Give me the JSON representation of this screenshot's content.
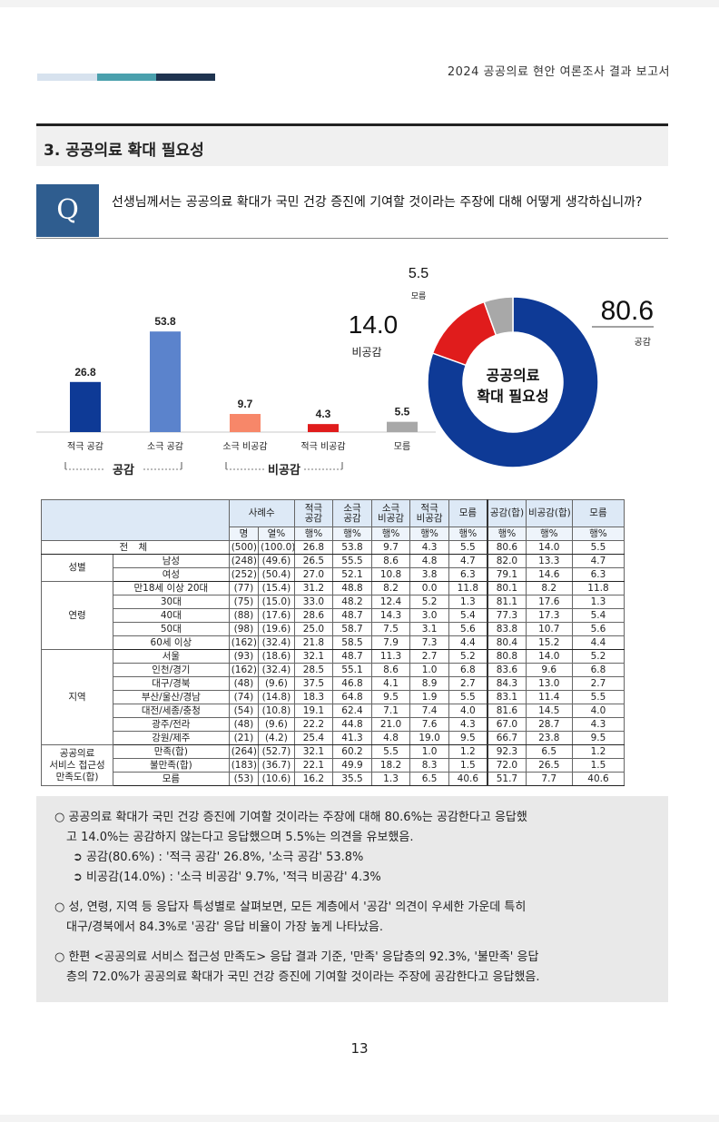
{
  "header": {
    "report_title": "2024 공공의료 현안 여론조사 결과 보고서",
    "bar_colors": [
      "#d7e2ee",
      "#4aa0ad",
      "#1f3450"
    ]
  },
  "section": {
    "title": "3. 공공의료 확대 필요성"
  },
  "question": {
    "badge": "Q",
    "text": "선생님께서는 공공의료 확대가 국민 건강 증진에 기여할 것이라는 주장에 대해 어떻게 생각하십니까?"
  },
  "chart_data": [
    {
      "type": "bar",
      "categories": [
        "적극 공감",
        "소극 공감",
        "소극 비공감",
        "적극 비공감",
        "모름"
      ],
      "values": [
        26.8,
        53.8,
        9.7,
        4.3,
        5.5
      ],
      "colors": [
        "#0e3a96",
        "#5b83cc",
        "#f78769",
        "#e01c1c",
        "#a8a8a8"
      ],
      "groups": [
        {
          "label": "공감",
          "categories": [
            "적극 공감",
            "소극 공감"
          ]
        },
        {
          "label": "비공감",
          "categories": [
            "소극 비공감",
            "적극 비공감"
          ]
        }
      ]
    },
    {
      "type": "pie",
      "center_label": [
        "공공의료",
        "확대 필요성"
      ],
      "slices": [
        {
          "label": "공감",
          "value": 80.6,
          "color": "#0e3a96"
        },
        {
          "label": "비공감",
          "value": 14.0,
          "color": "#e01c1c"
        },
        {
          "label": "모름",
          "value": 5.5,
          "color": "#a8a8a8"
        }
      ]
    }
  ],
  "table": {
    "head1": [
      "사례수",
      "적극\n공감",
      "소극\n공감",
      "소극\n비공감",
      "적극\n비공감",
      "모름",
      "공감(합)",
      "비공감(합)",
      "모름"
    ],
    "head2": [
      "명",
      "열%",
      "행%",
      "행%",
      "행%",
      "행%",
      "행%",
      "행%",
      "행%",
      "행%"
    ],
    "groups": [
      {
        "label": "",
        "rows": [
          {
            "label": "전 체",
            "n": "(500)",
            "pct": "(100.0)",
            "vals": [
              "26.8",
              "53.8",
              "9.7",
              "4.3",
              "5.5",
              "80.6",
              "14.0",
              "5.5"
            ]
          }
        ]
      },
      {
        "label": "성별",
        "rows": [
          {
            "label": "남성",
            "n": "(248)",
            "pct": "(49.6)",
            "vals": [
              "26.5",
              "55.5",
              "8.6",
              "4.8",
              "4.7",
              "82.0",
              "13.3",
              "4.7"
            ]
          },
          {
            "label": "여성",
            "n": "(252)",
            "pct": "(50.4)",
            "vals": [
              "27.0",
              "52.1",
              "10.8",
              "3.8",
              "6.3",
              "79.1",
              "14.6",
              "6.3"
            ]
          }
        ]
      },
      {
        "label": "연령",
        "rows": [
          {
            "label": "만18세 이상 20대",
            "n": "(77)",
            "pct": "(15.4)",
            "vals": [
              "31.2",
              "48.8",
              "8.2",
              "0.0",
              "11.8",
              "80.1",
              "8.2",
              "11.8"
            ]
          },
          {
            "label": "30대",
            "n": "(75)",
            "pct": "(15.0)",
            "vals": [
              "33.0",
              "48.2",
              "12.4",
              "5.2",
              "1.3",
              "81.1",
              "17.6",
              "1.3"
            ]
          },
          {
            "label": "40대",
            "n": "(88)",
            "pct": "(17.6)",
            "vals": [
              "28.6",
              "48.7",
              "14.3",
              "3.0",
              "5.4",
              "77.3",
              "17.3",
              "5.4"
            ]
          },
          {
            "label": "50대",
            "n": "(98)",
            "pct": "(19.6)",
            "vals": [
              "25.0",
              "58.7",
              "7.5",
              "3.1",
              "5.6",
              "83.8",
              "10.7",
              "5.6"
            ]
          },
          {
            "label": "60세 이상",
            "n": "(162)",
            "pct": "(32.4)",
            "vals": [
              "21.8",
              "58.5",
              "7.9",
              "7.3",
              "4.4",
              "80.4",
              "15.2",
              "4.4"
            ]
          }
        ]
      },
      {
        "label": "지역",
        "rows": [
          {
            "label": "서울",
            "n": "(93)",
            "pct": "(18.6)",
            "vals": [
              "32.1",
              "48.7",
              "11.3",
              "2.7",
              "5.2",
              "80.8",
              "14.0",
              "5.2"
            ]
          },
          {
            "label": "인천/경기",
            "n": "(162)",
            "pct": "(32.4)",
            "vals": [
              "28.5",
              "55.1",
              "8.6",
              "1.0",
              "6.8",
              "83.6",
              "9.6",
              "6.8"
            ]
          },
          {
            "label": "대구/경북",
            "n": "(48)",
            "pct": "(9.6)",
            "vals": [
              "37.5",
              "46.8",
              "4.1",
              "8.9",
              "2.7",
              "84.3",
              "13.0",
              "2.7"
            ]
          },
          {
            "label": "부산/울산/경남",
            "n": "(74)",
            "pct": "(14.8)",
            "vals": [
              "18.3",
              "64.8",
              "9.5",
              "1.9",
              "5.5",
              "83.1",
              "11.4",
              "5.5"
            ]
          },
          {
            "label": "대전/세종/충청",
            "n": "(54)",
            "pct": "(10.8)",
            "vals": [
              "19.1",
              "62.4",
              "7.1",
              "7.4",
              "4.0",
              "81.6",
              "14.5",
              "4.0"
            ]
          },
          {
            "label": "광주/전라",
            "n": "(48)",
            "pct": "(9.6)",
            "vals": [
              "22.2",
              "44.8",
              "21.0",
              "7.6",
              "4.3",
              "67.0",
              "28.7",
              "4.3"
            ]
          },
          {
            "label": "강원/제주",
            "n": "(21)",
            "pct": "(4.2)",
            "vals": [
              "25.4",
              "41.3",
              "4.8",
              "19.0",
              "9.5",
              "66.7",
              "23.8",
              "9.5"
            ]
          }
        ]
      },
      {
        "label": "공공의료\n서비스 접근성\n만족도(합)",
        "rows": [
          {
            "label": "만족(합)",
            "n": "(264)",
            "pct": "(52.7)",
            "vals": [
              "32.1",
              "60.2",
              "5.5",
              "1.0",
              "1.2",
              "92.3",
              "6.5",
              "1.2"
            ]
          },
          {
            "label": "불만족(합)",
            "n": "(183)",
            "pct": "(36.7)",
            "vals": [
              "22.1",
              "49.9",
              "18.2",
              "8.3",
              "1.5",
              "72.0",
              "26.5",
              "1.5"
            ]
          },
          {
            "label": "모름",
            "n": "(53)",
            "pct": "(10.6)",
            "vals": [
              "16.2",
              "35.5",
              "1.3",
              "6.5",
              "40.6",
              "51.7",
              "7.7",
              "40.6"
            ]
          }
        ]
      }
    ]
  },
  "summary": {
    "p1_line1": "○  공공의료 확대가 국민 건강 증진에 기여할 것이라는 주장에 대해 80.6%는 공감한다고 응답했",
    "p1_line2": "고 14.0%는 공감하지 않는다고 응답했으며 5.5%는 의견을 유보했음.",
    "b1": "➲ 공감(80.6%) : '적극 공감' 26.8%, '소극 공감' 53.8%",
    "b2": "➲ 비공감(14.0%) : '소극 비공감' 9.7%, '적극 비공감' 4.3%",
    "p2_line1": "○  성, 연령, 지역 등 응답자 특성별로 살펴보면, 모든 계층에서 '공감' 의견이 우세한 가운데 특히",
    "p2_line2": "대구/경북에서 84.3%로 '공감' 응답 비율이 가장 높게 나타났음.",
    "p3_line1": "○  한편 <공공의료 서비스 접근성 만족도> 응답 결과 기준, '만족' 응답층의 92.3%, '불만족' 응답",
    "p3_line2": "층의 72.0%가 공공의료 확대가 국민 건강 증진에 기여할 것이라는 주장에 공감한다고 응답했음."
  },
  "page_number": "13"
}
